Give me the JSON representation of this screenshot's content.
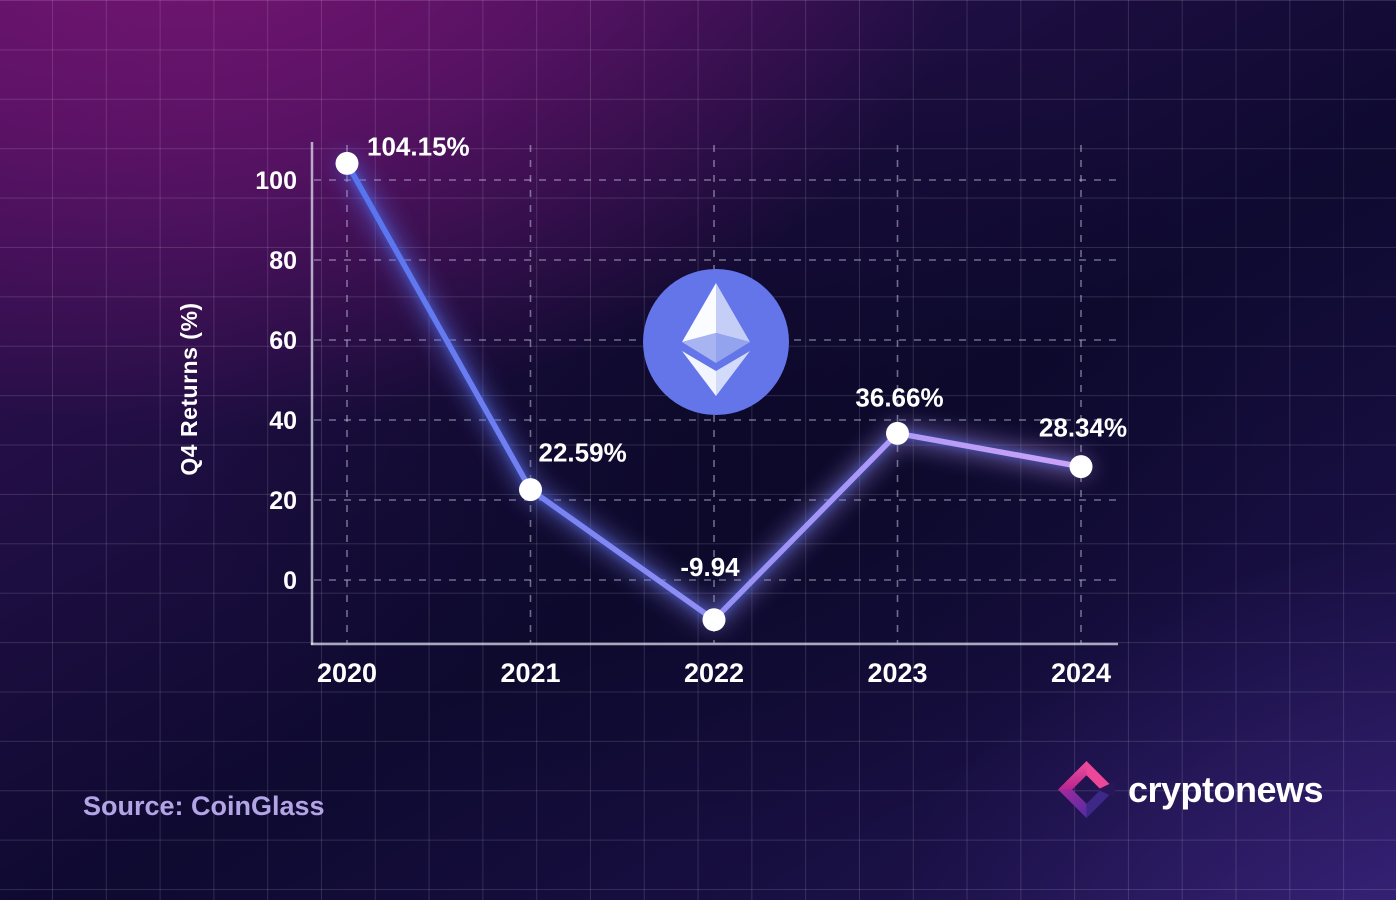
{
  "chart_data": {
    "type": "line",
    "title": "",
    "series_name": "Ethereum Q4 Returns",
    "categories": [
      "2020",
      "2021",
      "2022",
      "2023",
      "2024"
    ],
    "values": [
      104.15,
      22.59,
      -9.94,
      36.66,
      28.34
    ],
    "point_labels": [
      "104.15%",
      "22.59%",
      "-9.94",
      "36.66%",
      "28.34%"
    ],
    "xlabel": "",
    "ylabel": "Q4 Returns (%)",
    "yticks": [
      100,
      80,
      60,
      40,
      20,
      0
    ],
    "ylim": [
      -22,
      112
    ],
    "grid": "dashed",
    "legend": "none",
    "line_gradient": [
      "#5573ee",
      "#948ff4",
      "#cda4f8"
    ],
    "glow_color": "#4a66e8",
    "point_color": "#ffffff"
  },
  "footer": {
    "source_label": "Source: CoinGlass",
    "brand_name": "cryptonews"
  },
  "icons": {
    "center_icon": "ethereum-icon",
    "brand_icon": "cryptonews-icon"
  },
  "colors": {
    "background_navy": "#0e0a30",
    "magenta_glow": "#7c1577",
    "bottom_purple_glow": "#492e96",
    "grid_line": "rgba(255,255,255,0.13)",
    "axis_line": "rgba(226,229,243,0.72)",
    "dashed_gridline": "rgba(213,218,238,0.48)",
    "source_text": "#b3a4e6",
    "eth_circle": "#6375e9",
    "brand_pink": "#ee4699",
    "brand_magenta": "#c02b90",
    "brand_purple": "#6e2ba2",
    "brand_indigo": "#3d2787"
  }
}
